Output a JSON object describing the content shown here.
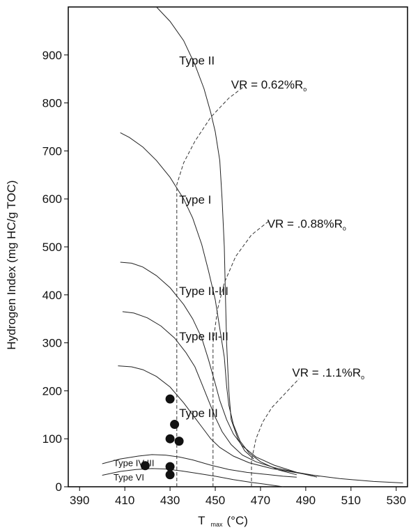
{
  "chart_data": {
    "type": "line",
    "xlabel": "T",
    "xlabel_sub": "max",
    "xlabel_unit": "(°C)",
    "ylabel": "Hydrogen Index (mg HC/g TOC)",
    "xlim": [
      385,
      535
    ],
    "ylim": [
      0,
      1000
    ],
    "x_ticks": [
      390,
      410,
      430,
      450,
      470,
      490,
      510,
      530
    ],
    "y_ticks": [
      0,
      100,
      200,
      300,
      400,
      500,
      600,
      700,
      800,
      900
    ],
    "grid": false,
    "series": [
      {
        "name": "Type II",
        "label_at": [
          434,
          880
        ],
        "points": [
          [
            424,
            1000
          ],
          [
            430,
            970
          ],
          [
            436,
            930
          ],
          [
            441,
            880
          ],
          [
            445,
            830
          ],
          [
            448,
            780
          ],
          [
            450,
            740
          ],
          [
            452,
            680
          ],
          [
            453,
            600
          ],
          [
            454,
            500
          ],
          [
            454.5,
            400
          ],
          [
            455,
            300
          ],
          [
            456,
            200
          ],
          [
            457,
            140
          ],
          [
            460,
            100
          ],
          [
            463,
            75
          ],
          [
            467,
            58
          ]
        ]
      },
      {
        "name": "Type I",
        "label_at": [
          434,
          590
        ],
        "points": [
          [
            408,
            738
          ],
          [
            412,
            728
          ],
          [
            418,
            708
          ],
          [
            424,
            680
          ],
          [
            430,
            645
          ],
          [
            436,
            600
          ],
          [
            440,
            560
          ],
          [
            444,
            505
          ],
          [
            447,
            450
          ],
          [
            450,
            390
          ],
          [
            452,
            330
          ],
          [
            454,
            270
          ],
          [
            455,
            210
          ],
          [
            456,
            170
          ],
          [
            458,
            130
          ],
          [
            461,
            95
          ],
          [
            465,
            70
          ],
          [
            470,
            52
          ],
          [
            478,
            35
          ],
          [
            486,
            25
          ]
        ]
      },
      {
        "name": "Type II-III",
        "label_at": [
          434,
          400
        ],
        "points": [
          [
            408,
            468
          ],
          [
            413,
            466
          ],
          [
            418,
            458
          ],
          [
            424,
            440
          ],
          [
            430,
            415
          ],
          [
            436,
            380
          ],
          [
            440,
            350
          ],
          [
            444,
            310
          ],
          [
            447,
            265
          ],
          [
            450,
            215
          ],
          [
            452,
            180
          ],
          [
            455,
            140
          ],
          [
            458,
            110
          ],
          [
            462,
            85
          ],
          [
            468,
            62
          ],
          [
            476,
            45
          ],
          [
            486,
            30
          ],
          [
            495,
            20
          ]
        ]
      },
      {
        "name": "Type III-II",
        "label_at": [
          434,
          305
        ],
        "points": [
          [
            409,
            365
          ],
          [
            414,
            362
          ],
          [
            420,
            352
          ],
          [
            426,
            335
          ],
          [
            432,
            310
          ],
          [
            437,
            280
          ],
          [
            441,
            250
          ],
          [
            444,
            215
          ],
          [
            447,
            180
          ],
          [
            450,
            145
          ],
          [
            453,
            115
          ],
          [
            457,
            88
          ],
          [
            462,
            66
          ],
          [
            468,
            52
          ],
          [
            476,
            40
          ],
          [
            486,
            30
          ],
          [
            496,
            22
          ]
        ]
      },
      {
        "name": "Type III",
        "label_at": [
          434,
          145
        ],
        "points": [
          [
            407,
            252
          ],
          [
            413,
            250
          ],
          [
            418,
            244
          ],
          [
            424,
            230
          ],
          [
            430,
            208
          ],
          [
            436,
            175
          ],
          [
            440,
            150
          ],
          [
            444,
            125
          ],
          [
            448,
            100
          ],
          [
            452,
            82
          ],
          [
            458,
            64
          ],
          [
            465,
            50
          ],
          [
            475,
            38
          ],
          [
            490,
            26
          ],
          [
            505,
            17
          ],
          [
            520,
            11
          ],
          [
            533,
            8
          ]
        ]
      },
      {
        "name": "Type IV-III",
        "label_at": [
          405,
          43
        ],
        "points": [
          [
            400,
            48
          ],
          [
            408,
            58
          ],
          [
            416,
            64
          ],
          [
            422,
            67
          ],
          [
            428,
            66
          ],
          [
            434,
            62
          ],
          [
            440,
            56
          ],
          [
            448,
            45
          ],
          [
            456,
            36
          ],
          [
            464,
            30
          ],
          [
            472,
            26
          ],
          [
            480,
            22
          ],
          [
            486,
            20
          ]
        ]
      },
      {
        "name": "Type VI",
        "label_at": [
          405,
          13
        ],
        "points": [
          [
            400,
            24
          ],
          [
            408,
            32
          ],
          [
            415,
            36
          ],
          [
            422,
            38
          ],
          [
            428,
            37
          ],
          [
            435,
            33
          ],
          [
            442,
            28
          ],
          [
            450,
            22
          ],
          [
            458,
            15
          ],
          [
            466,
            9
          ],
          [
            474,
            4
          ],
          [
            480,
            0
          ]
        ]
      }
    ],
    "vr_lines": [
      {
        "label": "VR = 0.62%R",
        "sub": "o",
        "label_at": [
          457,
          830
        ],
        "points": [
          [
            433,
            0
          ],
          [
            433,
            630
          ],
          [
            436,
            675
          ],
          [
            441,
            720
          ],
          [
            448,
            770
          ],
          [
            456,
            810
          ],
          [
            463,
            835
          ]
        ]
      },
      {
        "label": "VR = .0.88%R",
        "sub": "o",
        "label_at": [
          473,
          540
        ],
        "points": [
          [
            449,
            0
          ],
          [
            449,
            300
          ],
          [
            451,
            370
          ],
          [
            454,
            425
          ],
          [
            459,
            480
          ],
          [
            466,
            525
          ],
          [
            474,
            555
          ]
        ]
      },
      {
        "label": "VR = .1.1%R",
        "sub": "o",
        "label_at": [
          484,
          230
        ],
        "points": [
          [
            466,
            0
          ],
          [
            466,
            55
          ],
          [
            468,
            100
          ],
          [
            471,
            135
          ],
          [
            475,
            165
          ],
          [
            481,
            195
          ],
          [
            487,
            225
          ]
        ]
      }
    ],
    "scatter": [
      {
        "x": 430,
        "y": 183
      },
      {
        "x": 432,
        "y": 130
      },
      {
        "x": 430,
        "y": 100
      },
      {
        "x": 434,
        "y": 95
      },
      {
        "x": 419,
        "y": 44
      },
      {
        "x": 430,
        "y": 42
      },
      {
        "x": 430,
        "y": 25
      }
    ]
  }
}
